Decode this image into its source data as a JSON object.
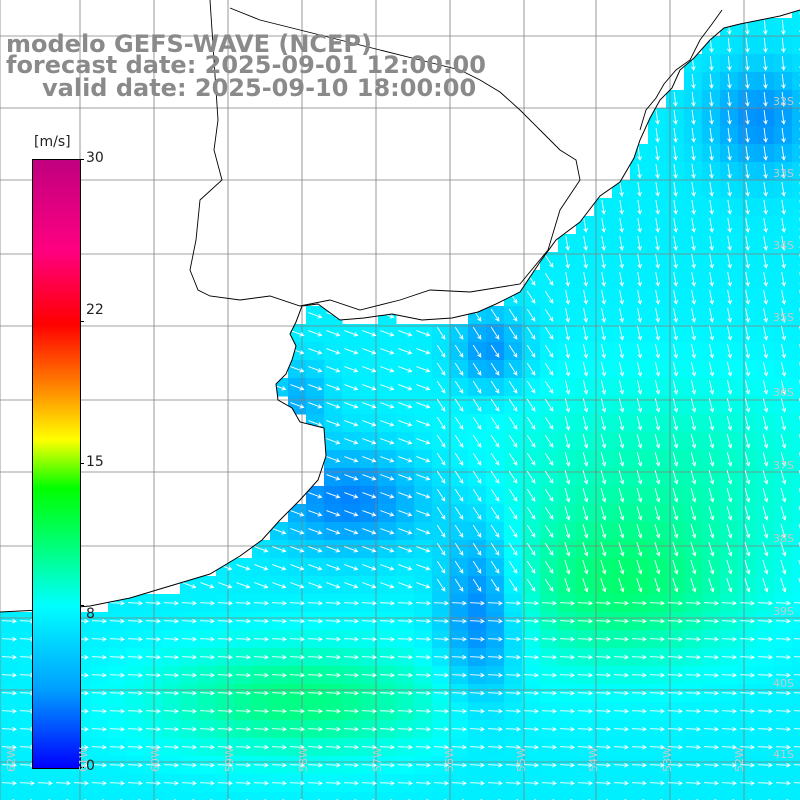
{
  "title": {
    "line1": "modelo GEFS-WAVE (NCEP)",
    "line2": "forecast date: 2025-09-01 12:00:00",
    "line3": "valid date: 2025-09-10 18:00:00"
  },
  "colorbar": {
    "unit": "[m/s]",
    "ticks": [
      "30",
      "22",
      "15",
      "8",
      "0"
    ],
    "tick_values": [
      30,
      22,
      15,
      8,
      0
    ],
    "min": 0,
    "max": 30,
    "colors": [
      "#0000ff",
      "#00a0ff",
      "#00ffff",
      "#00ff80",
      "#00ff00",
      "#ffff00",
      "#ff8000",
      "#ff0000",
      "#ff0080",
      "#c00080"
    ]
  },
  "map": {
    "land_color": "#ffffff",
    "coastline_color": "#000000",
    "grid_color": "#808080",
    "arrow_color": "#ffffff",
    "lat_labels": [
      "32S",
      "33S",
      "34S",
      "35S",
      "36S",
      "37S",
      "38S",
      "39S",
      "40S",
      "41S"
    ],
    "lon_labels": [
      "62W",
      "61W",
      "60W",
      "59W",
      "58W",
      "57W",
      "56W",
      "55W",
      "54W",
      "53W",
      "52W"
    ]
  }
}
